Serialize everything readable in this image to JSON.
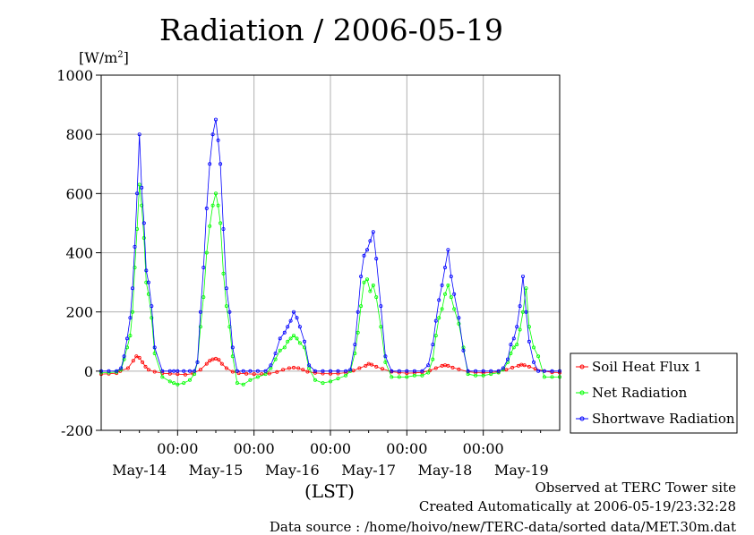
{
  "header": {
    "title": "Radiation / 2006-05-19"
  },
  "footer": {
    "site": "Observed at TERC Tower site",
    "created": "Created Automatically at 2006-05-19/23:32:28",
    "source": "Data source : /home/hoivo/new/TERC-data/sorted  data/MET.30m.dat"
  },
  "chart_data": {
    "type": "line",
    "title": "Radiation / 2006-05-19",
    "ylabel": "[W/m2]",
    "ylabel_base": "[W/m",
    "ylabel_sup": "2",
    "ylabel_close": "]",
    "xlabel": "(LST)",
    "ylim": [
      -200,
      1000
    ],
    "yticks": [
      -200,
      0,
      200,
      400,
      600,
      800,
      1000
    ],
    "xlim": [
      0,
      6
    ],
    "x_time_labels": [
      "00:00",
      "00:00",
      "00:00",
      "00:00",
      "00:00"
    ],
    "x_time_positions": [
      1,
      2,
      3,
      4,
      5
    ],
    "x_day_labels": [
      "May-14",
      "May-15",
      "May-16",
      "May-17",
      "May-18",
      "May-19"
    ],
    "x_day_positions": [
      0.5,
      1.5,
      2.5,
      3.5,
      4.5,
      5.5
    ],
    "grid": true,
    "legend_position": "right",
    "series": [
      {
        "name": "Soil Heat Flux 1",
        "color": "#ff0000",
        "x": [
          0.0,
          0.1,
          0.2,
          0.25,
          0.35,
          0.42,
          0.46,
          0.5,
          0.54,
          0.58,
          0.62,
          0.7,
          0.8,
          0.9,
          1.0,
          1.1,
          1.2,
          1.3,
          1.38,
          1.42,
          1.46,
          1.5,
          1.54,
          1.58,
          1.64,
          1.72,
          1.8,
          1.9,
          2.0,
          2.1,
          2.2,
          2.3,
          2.38,
          2.46,
          2.52,
          2.58,
          2.64,
          2.7,
          2.8,
          2.9,
          3.0,
          3.1,
          3.2,
          3.3,
          3.38,
          3.46,
          3.5,
          3.54,
          3.6,
          3.68,
          3.8,
          3.9,
          4.0,
          4.1,
          4.2,
          4.3,
          4.38,
          4.46,
          4.5,
          4.54,
          4.6,
          4.68,
          4.8,
          4.9,
          5.0,
          5.1,
          5.2,
          5.3,
          5.38,
          5.46,
          5.5,
          5.54,
          5.6,
          5.68,
          5.8,
          5.9,
          6.0
        ],
        "y": [
          -10,
          -9,
          -7,
          0,
          10,
          35,
          50,
          45,
          30,
          15,
          5,
          -2,
          -7,
          -9,
          -10,
          -12,
          -8,
          5,
          25,
          35,
          40,
          42,
          38,
          25,
          10,
          -2,
          -7,
          -9,
          -10,
          -10,
          -8,
          -3,
          5,
          10,
          12,
          10,
          5,
          -2,
          -6,
          -8,
          -9,
          -8,
          -5,
          2,
          10,
          18,
          25,
          22,
          15,
          8,
          -2,
          -5,
          -7,
          -6,
          -4,
          2,
          10,
          18,
          20,
          18,
          12,
          6,
          -2,
          -5,
          -6,
          -5,
          -2,
          5,
          12,
          18,
          22,
          20,
          15,
          8,
          0,
          -4,
          -5
        ]
      },
      {
        "name": "Net Radiation",
        "color": "#00ff00",
        "x": [
          0.0,
          0.1,
          0.2,
          0.26,
          0.3,
          0.34,
          0.38,
          0.41,
          0.44,
          0.47,
          0.5,
          0.53,
          0.56,
          0.59,
          0.62,
          0.66,
          0.7,
          0.8,
          0.9,
          0.95,
          1.0,
          1.08,
          1.16,
          1.22,
          1.26,
          1.3,
          1.34,
          1.38,
          1.42,
          1.46,
          1.5,
          1.53,
          1.56,
          1.6,
          1.64,
          1.68,
          1.72,
          1.78,
          1.86,
          1.95,
          2.05,
          2.15,
          2.22,
          2.28,
          2.34,
          2.4,
          2.44,
          2.48,
          2.52,
          2.56,
          2.6,
          2.66,
          2.72,
          2.8,
          2.9,
          3.0,
          3.1,
          3.2,
          3.26,
          3.32,
          3.36,
          3.4,
          3.44,
          3.48,
          3.52,
          3.56,
          3.6,
          3.66,
          3.72,
          3.8,
          3.9,
          4.0,
          4.1,
          4.2,
          4.28,
          4.34,
          4.38,
          4.42,
          4.46,
          4.5,
          4.54,
          4.58,
          4.62,
          4.68,
          4.74,
          4.8,
          4.9,
          5.0,
          5.1,
          5.2,
          5.26,
          5.32,
          5.36,
          5.4,
          5.44,
          5.48,
          5.52,
          5.56,
          5.6,
          5.66,
          5.72,
          5.8,
          5.9,
          6.0
        ],
        "y": [
          -5,
          -5,
          -3,
          5,
          40,
          80,
          120,
          200,
          350,
          480,
          630,
          560,
          450,
          300,
          260,
          180,
          60,
          -20,
          -35,
          -40,
          -45,
          -40,
          -30,
          -10,
          30,
          150,
          250,
          400,
          490,
          560,
          600,
          560,
          500,
          330,
          220,
          150,
          50,
          -40,
          -45,
          -30,
          -20,
          -10,
          10,
          40,
          70,
          80,
          100,
          110,
          120,
          110,
          95,
          80,
          10,
          -30,
          -40,
          -35,
          -25,
          -15,
          0,
          60,
          130,
          220,
          300,
          310,
          270,
          290,
          250,
          150,
          30,
          -20,
          -20,
          -20,
          -15,
          -15,
          -5,
          40,
          120,
          180,
          210,
          260,
          290,
          250,
          210,
          160,
          80,
          -10,
          -15,
          -15,
          -10,
          -5,
          5,
          30,
          60,
          80,
          90,
          140,
          200,
          280,
          150,
          80,
          50,
          -20,
          -20,
          -20
        ]
      },
      {
        "name": "Shortwave Radiation",
        "color": "#0000ff",
        "x": [
          0.0,
          0.1,
          0.2,
          0.26,
          0.3,
          0.34,
          0.38,
          0.41,
          0.44,
          0.47,
          0.5,
          0.53,
          0.56,
          0.59,
          0.62,
          0.66,
          0.7,
          0.8,
          0.9,
          0.95,
          1.0,
          1.08,
          1.16,
          1.22,
          1.26,
          1.3,
          1.34,
          1.38,
          1.42,
          1.46,
          1.5,
          1.53,
          1.56,
          1.6,
          1.64,
          1.68,
          1.72,
          1.78,
          1.86,
          1.95,
          2.05,
          2.15,
          2.22,
          2.28,
          2.34,
          2.4,
          2.44,
          2.48,
          2.52,
          2.56,
          2.6,
          2.66,
          2.72,
          2.8,
          2.9,
          3.0,
          3.1,
          3.2,
          3.26,
          3.32,
          3.36,
          3.4,
          3.44,
          3.48,
          3.52,
          3.56,
          3.6,
          3.66,
          3.72,
          3.8,
          3.9,
          4.0,
          4.1,
          4.2,
          4.28,
          4.34,
          4.38,
          4.42,
          4.46,
          4.5,
          4.54,
          4.58,
          4.62,
          4.68,
          4.74,
          4.8,
          4.9,
          5.0,
          5.1,
          5.2,
          5.26,
          5.32,
          5.36,
          5.4,
          5.44,
          5.48,
          5.52,
          5.56,
          5.6,
          5.66,
          5.72,
          5.8,
          5.9,
          6.0
        ],
        "y": [
          0,
          0,
          0,
          10,
          50,
          110,
          180,
          280,
          420,
          600,
          800,
          620,
          500,
          340,
          300,
          220,
          80,
          0,
          0,
          0,
          0,
          0,
          0,
          0,
          30,
          200,
          350,
          550,
          700,
          800,
          850,
          780,
          700,
          480,
          280,
          200,
          80,
          0,
          0,
          0,
          0,
          0,
          20,
          60,
          110,
          130,
          150,
          170,
          200,
          180,
          150,
          100,
          20,
          0,
          0,
          0,
          0,
          0,
          5,
          90,
          200,
          320,
          390,
          410,
          440,
          470,
          380,
          220,
          50,
          0,
          0,
          0,
          0,
          0,
          20,
          90,
          170,
          240,
          290,
          350,
          410,
          320,
          260,
          180,
          70,
          0,
          0,
          0,
          0,
          0,
          10,
          40,
          90,
          110,
          150,
          220,
          320,
          200,
          100,
          30,
          0,
          0,
          0,
          0
        ]
      }
    ]
  }
}
